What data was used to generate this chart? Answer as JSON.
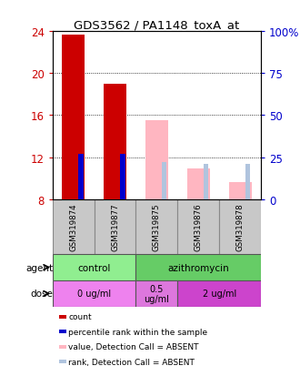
{
  "title": "GDS3562 / PA1148_toxA_at",
  "samples": [
    "GSM319874",
    "GSM319877",
    "GSM319875",
    "GSM319876",
    "GSM319878"
  ],
  "red_bars": [
    23.7,
    19.0,
    null,
    null,
    null
  ],
  "blue_bars_right": [
    27,
    27,
    null,
    null,
    null
  ],
  "pink_bars": [
    null,
    null,
    15.5,
    10.9,
    9.6
  ],
  "lightblue_bars_right": [
    null,
    null,
    22,
    21,
    21
  ],
  "ylim_left": [
    8,
    24
  ],
  "ylim_right": [
    0,
    100
  ],
  "yticks_left": [
    8,
    12,
    16,
    20,
    24
  ],
  "yticks_right": [
    0,
    25,
    50,
    75,
    100
  ],
  "ytick_labels_right": [
    "0",
    "25",
    "50",
    "75",
    "100%"
  ],
  "agent_row": [
    {
      "label": "control",
      "span": [
        0,
        2
      ],
      "color": "#90EE90"
    },
    {
      "label": "azithromycin",
      "span": [
        2,
        5
      ],
      "color": "#66CC66"
    }
  ],
  "dose_row": [
    {
      "label": "0 ug/ml",
      "span": [
        0,
        2
      ],
      "color": "#EE82EE"
    },
    {
      "label": "0.5\nug/ml",
      "span": [
        2,
        3
      ],
      "color": "#DD77DD"
    },
    {
      "label": "2 ug/ml",
      "span": [
        3,
        5
      ],
      "color": "#CC44CC"
    }
  ],
  "legend_items": [
    {
      "color": "#CC0000",
      "label": "count"
    },
    {
      "color": "#0000CC",
      "label": "percentile rank within the sample"
    },
    {
      "color": "#FFB6C1",
      "label": "value, Detection Call = ABSENT"
    },
    {
      "color": "#B0C4DE",
      "label": "rank, Detection Call = ABSENT"
    }
  ],
  "red_bar_width": 0.55,
  "blue_bar_width": 0.12,
  "pink_bar_width": 0.55,
  "lightblue_bar_width": 0.12,
  "red_color": "#CC0000",
  "blue_color": "#0000CC",
  "pink_color": "#FFB6C1",
  "lightblue_color": "#B0C4DE",
  "agent_label": "agent",
  "dose_label": "dose",
  "left_axis_color": "#CC0000",
  "right_axis_color": "#0000CC",
  "sample_box_color": "#C8C8C8"
}
